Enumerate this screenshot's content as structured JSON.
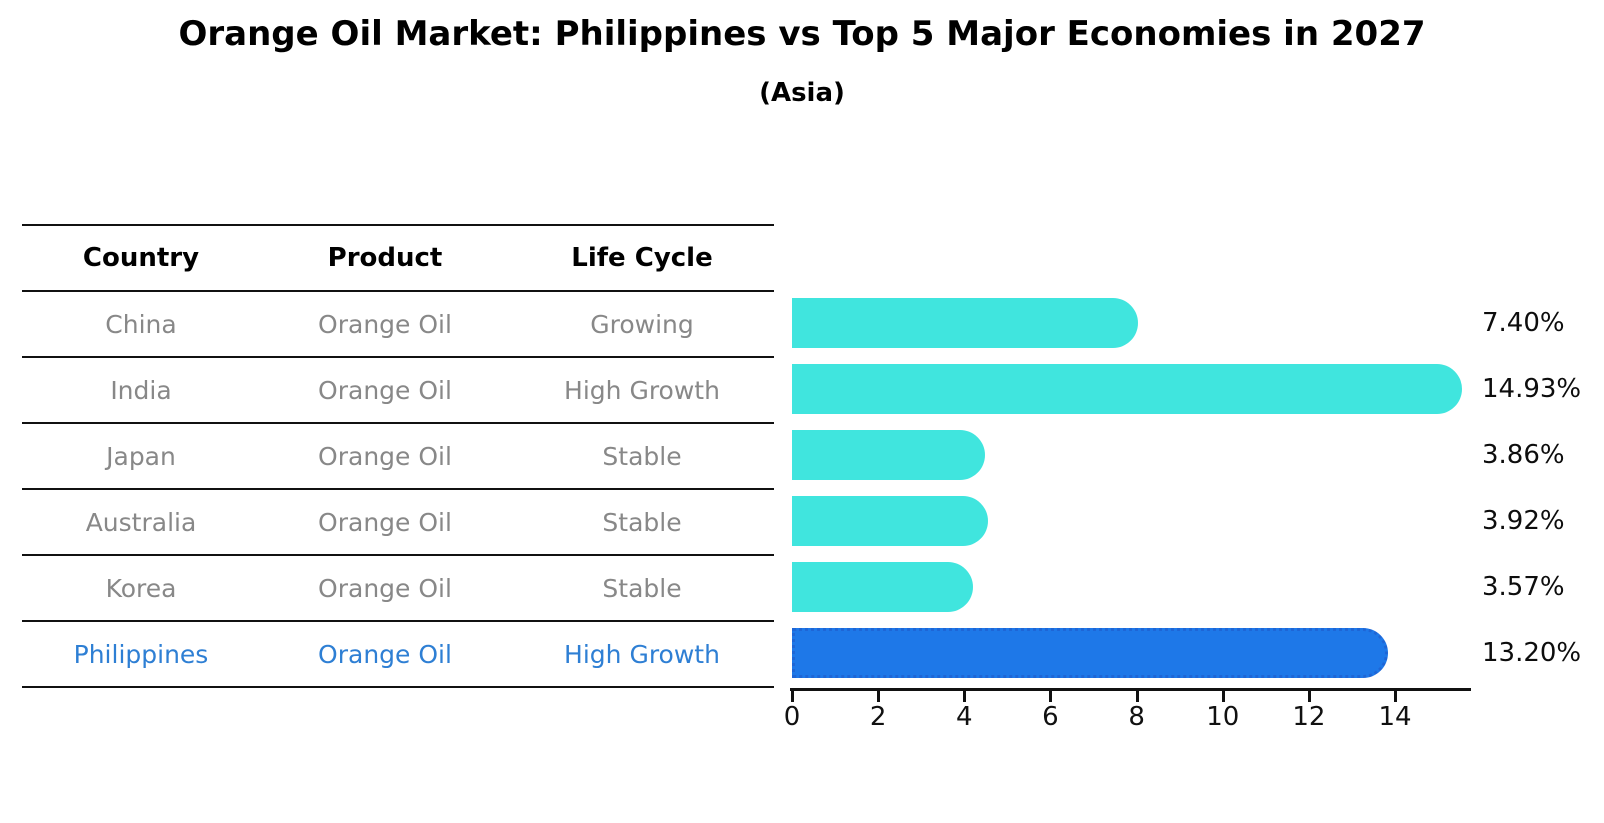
{
  "title": "Orange Oil Market: Philippines vs Top 5 Major Economies in 2027",
  "subtitle": "(Asia)",
  "table": {
    "headers": [
      "Country",
      "Product",
      "Life Cycle"
    ],
    "rows": [
      {
        "country": "China",
        "product": "Orange Oil",
        "life_cycle": "Growing",
        "highlight": false
      },
      {
        "country": "India",
        "product": "Orange Oil",
        "life_cycle": "High Growth",
        "highlight": false
      },
      {
        "country": "Japan",
        "product": "Orange Oil",
        "life_cycle": "Stable",
        "highlight": false
      },
      {
        "country": "Australia",
        "product": "Orange Oil",
        "life_cycle": "Stable",
        "highlight": false
      },
      {
        "country": "Korea",
        "product": "Orange Oil",
        "life_cycle": "Stable",
        "highlight": false
      },
      {
        "country": "Philippines",
        "product": "Orange Oil",
        "life_cycle": "High Growth",
        "highlight": true
      }
    ]
  },
  "chart_data": {
    "type": "bar",
    "orientation": "horizontal",
    "title": "Orange Oil Market: Philippines vs Top 5 Major Economies in 2027",
    "subtitle": "(Asia)",
    "categories": [
      "China",
      "India",
      "Japan",
      "Australia",
      "Korea",
      "Philippines"
    ],
    "values": [
      7.4,
      14.93,
      3.86,
      3.92,
      3.57,
      13.2
    ],
    "value_labels": [
      "7.40%",
      "14.93%",
      "3.86%",
      "3.92%",
      "3.57%",
      "13.20%"
    ],
    "x_ticks": [
      0,
      2,
      4,
      6,
      8,
      10,
      12,
      14
    ],
    "xlim": [
      0,
      15.74
    ],
    "grid": false,
    "legend": false,
    "highlight_index": 5
  },
  "colors": {
    "bar": "#40E5DE",
    "highlight_bar": "#1E78E8",
    "highlight_bar_border": "#1E66D6",
    "highlight_text": "#2E7FD4",
    "table_text": "#888888",
    "heading_text": "#000000"
  }
}
